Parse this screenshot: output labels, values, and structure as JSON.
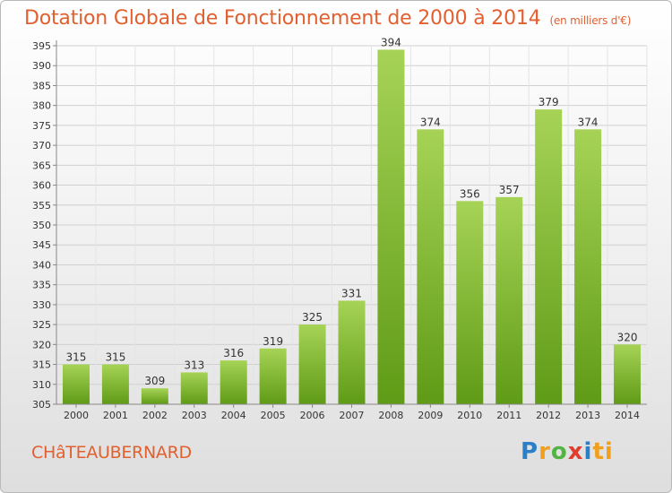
{
  "header": {
    "title": "Dotation Globale de Fonctionnement de 2000 à 2014",
    "unit_note": "(en milliers d'€)"
  },
  "footer": {
    "commune": "CHâTEAUBERNARD",
    "brand": "Proxiti"
  },
  "colors": {
    "title": "#e2602f",
    "bar_top": "#a6d356",
    "bar_bottom": "#5f9b16",
    "grid": "#d0d0d0"
  },
  "chart_data": {
    "type": "bar",
    "title": "Dotation Globale de Fonctionnement de 2000 à 2014",
    "subtitle": "(en milliers d'€)",
    "xlabel": "",
    "ylabel": "",
    "categories": [
      "2000",
      "2001",
      "2002",
      "2003",
      "2004",
      "2005",
      "2006",
      "2007",
      "2008",
      "2009",
      "2010",
      "2011",
      "2012",
      "2013",
      "2014"
    ],
    "values": [
      315,
      315,
      309,
      313,
      316,
      319,
      325,
      331,
      394,
      374,
      356,
      357,
      379,
      374,
      320
    ],
    "ylim": [
      305,
      395
    ],
    "yticks": [
      305,
      310,
      315,
      320,
      325,
      330,
      335,
      340,
      345,
      350,
      355,
      360,
      365,
      370,
      375,
      380,
      385,
      390,
      395
    ],
    "grid": true,
    "legend": "none"
  }
}
